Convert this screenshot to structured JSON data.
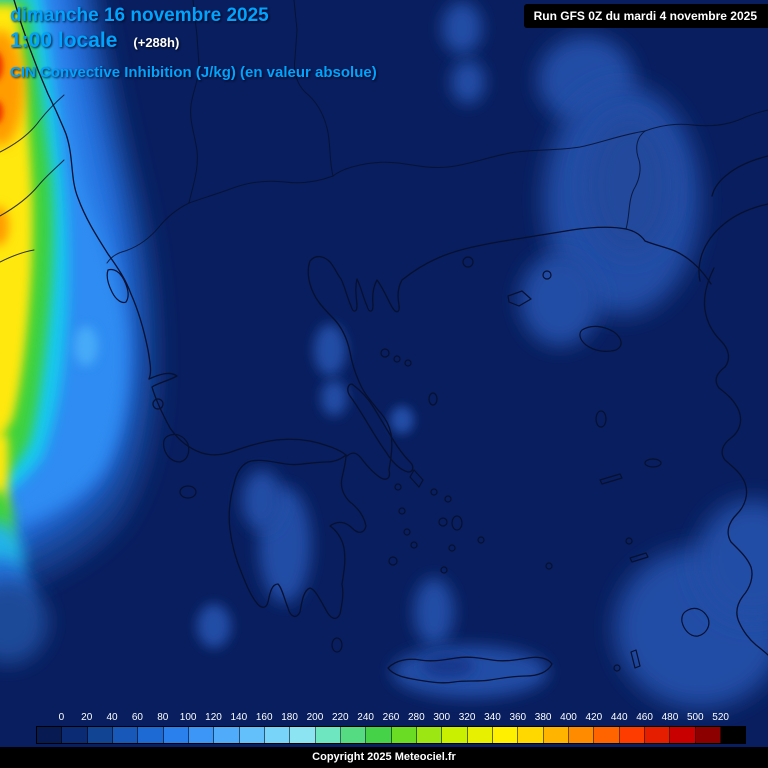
{
  "header": {
    "date_line": "dimanche 16 novembre 2025",
    "time_line": "1:00 locale",
    "forecast_offset": "(+288h)",
    "parameter_label": "CIN Convective Inhibition (J/kg) (en valeur absolue)"
  },
  "run_info": "Run GFS 0Z du mardi 4 novembre 2025",
  "legend": {
    "tick_labels": [
      "0",
      "20",
      "40",
      "60",
      "80",
      "100",
      "120",
      "140",
      "160",
      "180",
      "200",
      "220",
      "240",
      "260",
      "280",
      "300",
      "320",
      "340",
      "360",
      "380",
      "400",
      "420",
      "440",
      "460",
      "480",
      "500",
      "520"
    ],
    "cell_colors": [
      "#071A52",
      "#0B2C74",
      "#124494",
      "#1858B8",
      "#1E6AD4",
      "#2A80EC",
      "#3C96F8",
      "#50ACFA",
      "#64C0FA",
      "#78D4F8",
      "#8CE4F2",
      "#6EE6C0",
      "#55DC82",
      "#46D248",
      "#6ADC24",
      "#9CE614",
      "#C8F000",
      "#E6F000",
      "#FFF000",
      "#FFD800",
      "#FFB400",
      "#FF8C00",
      "#FF6400",
      "#FF3C00",
      "#E61E00",
      "#C80000",
      "#8C0000",
      "#000000"
    ]
  },
  "footer": {
    "copyright_label": "Copyright 2025 Meteociel.fr"
  },
  "colors": {
    "map_background": "#081E5E",
    "low_cin_patch": "#19388C",
    "accent_text": "#00A4FF",
    "coastline": "#071030",
    "label_text": "#FFFFFF",
    "run_box_bg": "#000000"
  }
}
